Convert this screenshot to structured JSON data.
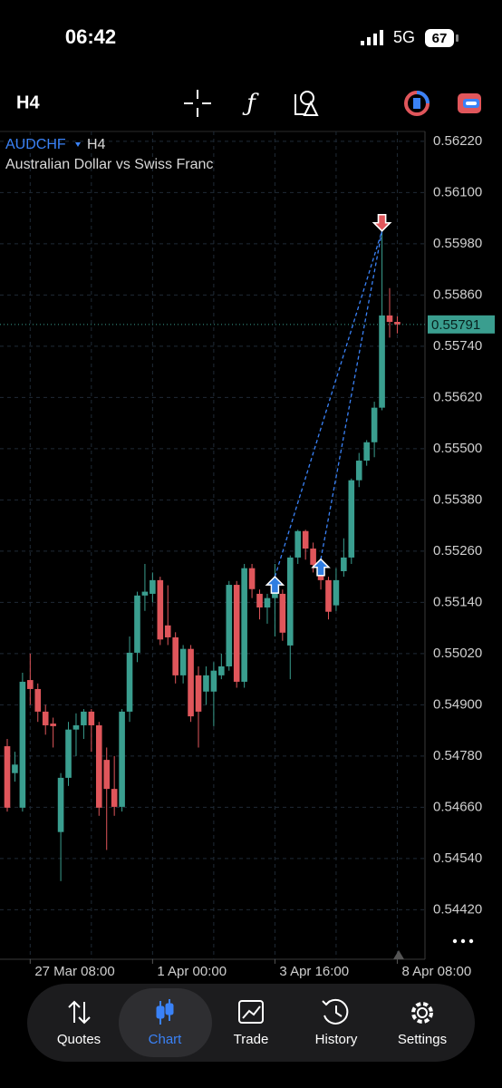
{
  "status": {
    "time": "06:42",
    "network": "5G",
    "battery": "67"
  },
  "toolbar": {
    "timeframe": "H4"
  },
  "chart_data": {
    "type": "candlestick",
    "symbol": "AUDCHF",
    "timeframe": "H4",
    "subtitle": "Australian Dollar vs Swiss Franc",
    "up_color": "#3a9e8f",
    "down_color": "#e0565b",
    "grid": true,
    "categories": [
      null,
      null,
      null,
      "27 Mar 08:00",
      null,
      null,
      null,
      null,
      null,
      null,
      null,
      null,
      null,
      null,
      null,
      null,
      null,
      null,
      null,
      "1 Apr 00:00",
      null,
      null,
      null,
      null,
      null,
      null,
      null,
      null,
      null,
      null,
      null,
      null,
      null,
      null,
      null,
      "3 Apr 16:00",
      null,
      null,
      null,
      null,
      null,
      null,
      null,
      null,
      null,
      null,
      null,
      null,
      null,
      null,
      null,
      "8 Apr 08:00"
    ],
    "open": [
      0.54803,
      0.5474,
      0.54659,
      0.54958,
      0.54937,
      0.54884,
      0.54856,
      0.54602,
      0.54729,
      0.54842,
      0.54852,
      0.54884,
      0.54852,
      0.54771,
      0.54703,
      0.54661,
      0.54884,
      0.55022,
      0.55156,
      0.5516,
      0.55192,
      0.55086,
      0.55058,
      0.54969,
      0.55031,
      0.54969,
      0.54931,
      0.54931,
      0.54969,
      0.5499,
      0.55181,
      0.54954,
      0.5522,
      0.5516,
      0.55128,
      0.5515,
      0.5516,
      0.55039,
      0.55245,
      0.55307,
      0.55266,
      0.55228,
      0.55192,
      0.55133,
      0.55213,
      0.55245,
      0.55426,
      0.55472,
      0.55515,
      0.55596,
      0.55812,
      0.55797
    ],
    "high": [
      0.5482,
      0.5479,
      0.54975,
      0.5502,
      0.5495,
      0.549,
      0.5487,
      0.5474,
      0.5486,
      0.5488,
      0.5489,
      0.5489,
      0.5486,
      0.548,
      0.5478,
      0.5489,
      0.5506,
      0.55165,
      0.5523,
      0.5521,
      0.552,
      0.5518,
      0.5507,
      0.5504,
      0.5504,
      0.5499,
      0.5499,
      0.55,
      0.5502,
      0.5519,
      0.5519,
      0.5523,
      0.5523,
      0.5517,
      0.5516,
      0.5523,
      0.5517,
      0.5525,
      0.5531,
      0.5531,
      0.5528,
      0.5524,
      0.552,
      0.5522,
      0.5529,
      0.5543,
      0.5549,
      0.5552,
      0.5561,
      0.5601,
      0.55876,
      0.5581
    ],
    "low": [
      0.5465,
      0.5472,
      0.5465,
      0.549,
      0.5486,
      0.5483,
      0.548,
      0.54487,
      0.5471,
      0.5478,
      0.5482,
      0.5479,
      0.5464,
      0.5456,
      0.5464,
      0.5465,
      0.5486,
      0.55,
      0.5512,
      0.5514,
      0.5504,
      0.5504,
      0.5495,
      0.5495,
      0.5486,
      0.548,
      0.549,
      0.5485,
      0.5496,
      0.5498,
      0.5494,
      0.5494,
      0.5515,
      0.551,
      0.5509,
      0.5506,
      0.5505,
      0.5496,
      0.5523,
      0.5524,
      0.5521,
      0.5517,
      0.551,
      0.5512,
      0.552,
      0.5523,
      0.5541,
      0.5546,
      0.5548,
      0.5559,
      0.5576,
      0.5577
    ],
    "close": [
      0.54659,
      0.5476,
      0.54954,
      0.54937,
      0.54884,
      0.54852,
      0.5485,
      0.54729,
      0.54842,
      0.54852,
      0.54884,
      0.54852,
      0.54659,
      0.54703,
      0.54661,
      0.54884,
      0.55022,
      0.55156,
      0.55165,
      0.55192,
      0.55053,
      0.55058,
      0.54969,
      0.55031,
      0.54873,
      0.54884,
      0.54969,
      0.5498,
      0.5499,
      0.55181,
      0.54954,
      0.5522,
      0.55171,
      0.55128,
      0.5515,
      0.55181,
      0.55069,
      0.55245,
      0.55307,
      0.55266,
      0.55228,
      0.55192,
      0.55118,
      0.55192,
      0.55245,
      0.55426,
      0.55472,
      0.55515,
      0.55596,
      0.55812,
      0.55797,
      0.55791
    ],
    "ylim": [
      0.54304,
      0.56243
    ],
    "yticks": [
      {
        "value": 0.5622,
        "label": "0.56220"
      },
      {
        "value": 0.561,
        "label": "0.56100"
      },
      {
        "value": 0.5598,
        "label": "0.55980"
      },
      {
        "value": 0.5586,
        "label": "0.55860"
      },
      {
        "value": 0.5574,
        "label": "0.55740"
      },
      {
        "value": 0.5562,
        "label": "0.55620"
      },
      {
        "value": 0.555,
        "label": "0.55500"
      },
      {
        "value": 0.5538,
        "label": "0.55380"
      },
      {
        "value": 0.5526,
        "label": "0.55260"
      },
      {
        "value": 0.5514,
        "label": "0.55140"
      },
      {
        "value": 0.5502,
        "label": "0.55020"
      },
      {
        "value": 0.549,
        "label": "0.54900"
      },
      {
        "value": 0.5478,
        "label": "0.54780"
      },
      {
        "value": 0.5466,
        "label": "0.54660"
      },
      {
        "value": 0.5454,
        "label": "0.54540"
      },
      {
        "value": 0.5442,
        "label": "0.54420"
      }
    ],
    "last_price": 0.55791,
    "trades": [
      {
        "open_index": 35,
        "open_price": 0.552,
        "close_index": 49,
        "close_price": 0.5601
      },
      {
        "open_index": 41,
        "open_price": 0.55241,
        "close_index": 49,
        "close_price": 0.5601
      }
    ]
  },
  "nav": [
    "Quotes",
    "Chart",
    "Trade",
    "History",
    "Settings"
  ],
  "nav_selected": 1
}
